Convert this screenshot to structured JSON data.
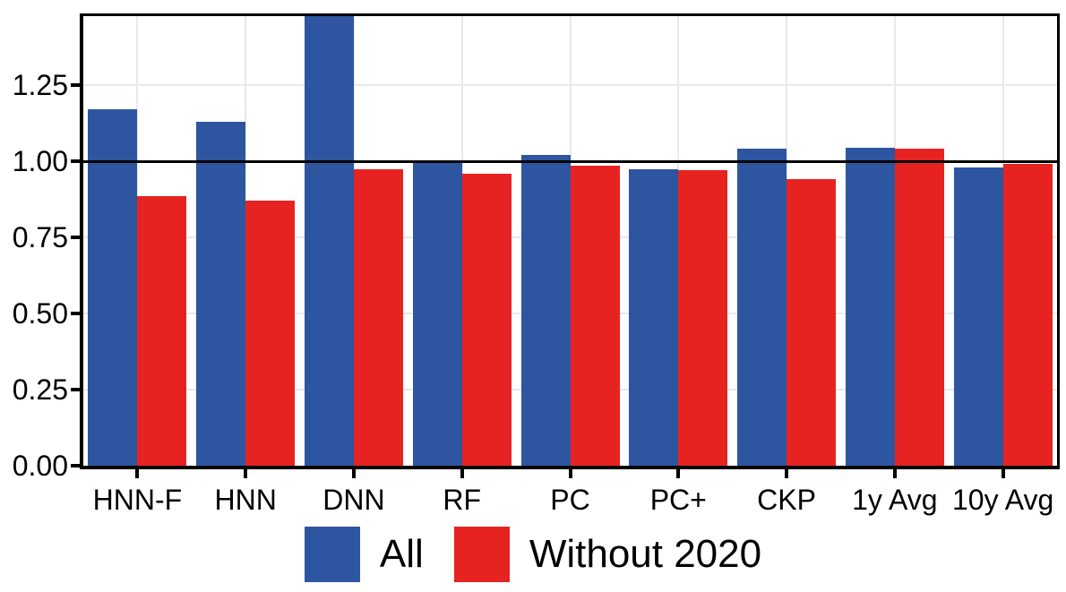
{
  "chart_data": {
    "type": "bar",
    "title": "",
    "xlabel": "",
    "ylabel": "",
    "categories": [
      "HNN-F",
      "HNN",
      "DNN",
      "RF",
      "PC",
      "PC+",
      "CKP",
      "1y Avg",
      "10y Avg"
    ],
    "series": [
      {
        "name": "All",
        "color": "#2D55A0",
        "values": [
          1.17,
          1.13,
          1.48,
          1.0,
          1.02,
          0.975,
          1.04,
          1.045,
          0.98
        ]
      },
      {
        "name": "Without 2020",
        "color": "#E62321",
        "values": [
          0.885,
          0.87,
          0.975,
          0.96,
          0.985,
          0.97,
          0.94,
          1.04,
          0.99
        ]
      }
    ],
    "ylim": [
      0,
      1.477
    ],
    "yticks": [
      {
        "value": 0.0,
        "label": "0.00"
      },
      {
        "value": 0.25,
        "label": "0.25"
      },
      {
        "value": 0.5,
        "label": "0.50"
      },
      {
        "value": 0.75,
        "label": "0.75"
      },
      {
        "value": 1.0,
        "label": "1.00"
      },
      {
        "value": 1.25,
        "label": "1.25"
      }
    ],
    "reference_line": 1.0,
    "grid": "major horizontal gridlines at y ticks and vertical gridlines at category centers, light gray",
    "legend_position": "bottom",
    "notes": "The 'All' (blue) bar for DNN is clipped at the top edge of the panel (extends beyond the visible y range of ~1.48). The black reference line at y = 1.00 is drawn on top of the bars."
  }
}
